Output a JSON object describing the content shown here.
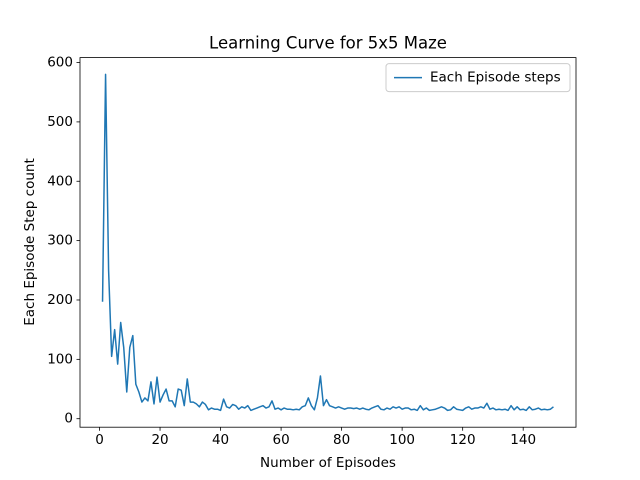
{
  "chart_data": {
    "type": "line",
    "title": "Learning Curve for 5x5 Maze",
    "xlabel": "Number of Episodes",
    "ylabel": "Each Episode Step count",
    "x": [
      1,
      2,
      3,
      4,
      5,
      6,
      7,
      8,
      9,
      10,
      11,
      12,
      13,
      14,
      15,
      16,
      17,
      18,
      19,
      20,
      21,
      22,
      23,
      24,
      25,
      26,
      27,
      28,
      29,
      30,
      31,
      32,
      33,
      34,
      35,
      36,
      37,
      38,
      39,
      40,
      41,
      42,
      43,
      44,
      45,
      46,
      47,
      48,
      49,
      50,
      51,
      52,
      53,
      54,
      55,
      56,
      57,
      58,
      59,
      60,
      61,
      62,
      63,
      64,
      65,
      66,
      67,
      68,
      69,
      70,
      71,
      72,
      73,
      74,
      75,
      76,
      77,
      78,
      79,
      80,
      81,
      82,
      83,
      84,
      85,
      86,
      87,
      88,
      89,
      90,
      91,
      92,
      93,
      94,
      95,
      96,
      97,
      98,
      99,
      100,
      101,
      102,
      103,
      104,
      105,
      106,
      107,
      108,
      109,
      110,
      111,
      112,
      113,
      114,
      115,
      116,
      117,
      118,
      119,
      120,
      121,
      122,
      123,
      124,
      125,
      126,
      127,
      128,
      129,
      130,
      131,
      132,
      133,
      134,
      135,
      136,
      137,
      138,
      139,
      140,
      141,
      142,
      143,
      144,
      145,
      146,
      147,
      148,
      149,
      150
    ],
    "series": [
      {
        "name": "Each Episode steps",
        "color": "#1f77b4",
        "values": [
          197,
          580,
          250,
          105,
          150,
          92,
          162,
          120,
          45,
          120,
          140,
          58,
          45,
          28,
          35,
          30,
          62,
          25,
          70,
          28,
          40,
          50,
          30,
          30,
          20,
          50,
          48,
          22,
          67,
          28,
          28,
          25,
          20,
          28,
          24,
          15,
          18,
          16,
          16,
          14,
          33,
          20,
          18,
          24,
          22,
          16,
          20,
          18,
          22,
          14,
          16,
          18,
          20,
          22,
          18,
          20,
          30,
          16,
          18,
          15,
          18,
          16,
          16,
          15,
          16,
          15,
          20,
          22,
          35,
          22,
          15,
          35,
          72,
          22,
          32,
          22,
          20,
          18,
          20,
          18,
          16,
          18,
          18,
          17,
          18,
          16,
          18,
          16,
          15,
          18,
          20,
          22,
          16,
          15,
          18,
          16,
          20,
          18,
          20,
          16,
          18,
          18,
          15,
          16,
          14,
          22,
          15,
          18,
          14,
          15,
          16,
          18,
          20,
          18,
          14,
          15,
          20,
          16,
          15,
          14,
          18,
          20,
          16,
          18,
          18,
          20,
          18,
          26,
          16,
          18,
          15,
          16,
          15,
          16,
          14,
          22,
          15,
          20,
          15,
          16,
          14,
          20,
          15,
          16,
          18,
          15,
          16,
          15,
          16,
          20
        ]
      }
    ],
    "xlim": [
      -6.45,
      157.45
    ],
    "ylim": [
      -14.3,
      608.3
    ],
    "xticks": [
      0,
      20,
      40,
      60,
      80,
      100,
      120,
      140
    ],
    "yticks": [
      0,
      100,
      200,
      300,
      400,
      500,
      600
    ],
    "legend": "upper right"
  }
}
